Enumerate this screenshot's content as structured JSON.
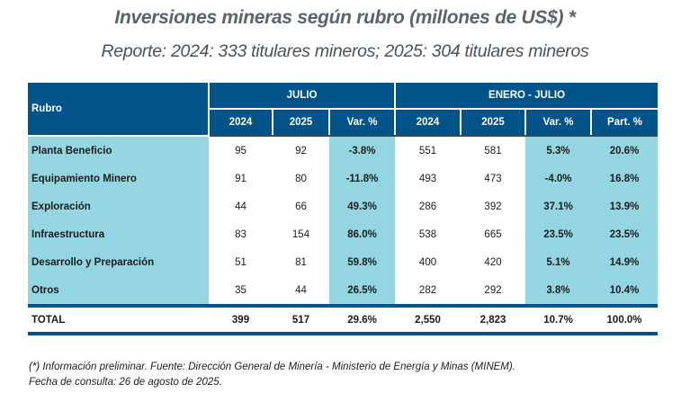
{
  "title": "Inversiones mineras según rubro (millones de US$) *",
  "subtitle": "Reporte: 2024: 333 titulares mineros; 2025: 304 titulares mineros",
  "colors": {
    "header_blue": "#00548a",
    "highlight_cyan": "#93d5e0"
  },
  "table": {
    "rubro_header": "Rubro",
    "group_headers": [
      "JULIO",
      "ENERO - JULIO"
    ],
    "sub_headers": [
      "2024",
      "2025",
      "Var. %",
      "2024",
      "2025",
      "Var. %",
      "Part. %"
    ],
    "rows": [
      {
        "name": "Planta Beneficio",
        "values": [
          "95",
          "92",
          "-3.8%",
          "551",
          "581",
          "5.3%",
          "20.6%"
        ]
      },
      {
        "name": "Equipamiento Minero",
        "values": [
          "91",
          "80",
          "-11.8%",
          "493",
          "473",
          "-4.0%",
          "16.8%"
        ]
      },
      {
        "name": "Exploración",
        "values": [
          "44",
          "66",
          "49.3%",
          "286",
          "392",
          "37.1%",
          "13.9%"
        ]
      },
      {
        "name": "Infraestructura",
        "values": [
          "83",
          "154",
          "86.0%",
          "538",
          "665",
          "23.5%",
          "23.5%"
        ]
      },
      {
        "name": "Desarrollo y Preparación",
        "values": [
          "51",
          "81",
          "59.8%",
          "400",
          "420",
          "5.1%",
          "14.9%"
        ]
      },
      {
        "name": "Otros",
        "values": [
          "35",
          "44",
          "26.5%",
          "282",
          "292",
          "3.8%",
          "10.4%"
        ]
      }
    ],
    "total": {
      "name": "TOTAL",
      "values": [
        "399",
        "517",
        "29.6%",
        "2,550",
        "2,823",
        "10.7%",
        "100.0%"
      ]
    }
  },
  "footnote": {
    "line1": "(*) Información preliminar. Fuente: Dirección General de Minería - Ministerio de Energía y Minas (MINEM).",
    "line2": "Fecha de consulta: 26 de agosto de 2025."
  }
}
